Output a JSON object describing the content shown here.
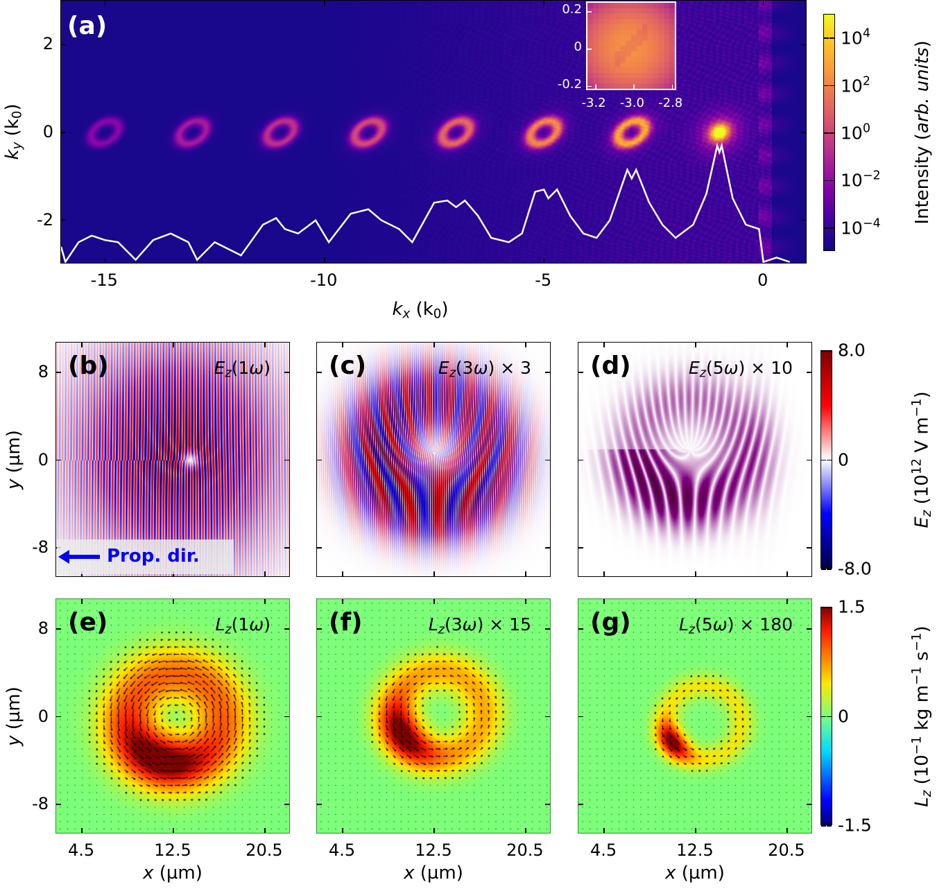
{
  "chart_data": [
    {
      "panel": "a",
      "type": "heatmap",
      "label": "(a)",
      "colormap": "plasma",
      "xlabel": [
        {
          "t": "k",
          "i": true
        },
        {
          "t": "x",
          "i": true,
          "sub": true
        },
        {
          "t": " (k"
        },
        {
          "t": "0",
          "sub": true
        },
        {
          "t": ")"
        }
      ],
      "ylabel": [
        {
          "t": "k",
          "i": true
        },
        {
          "t": "y",
          "i": true,
          "sub": true
        },
        {
          "t": " (k"
        },
        {
          "t": "0",
          "sub": true
        },
        {
          "t": ")"
        }
      ],
      "xlim": [
        -16,
        1
      ],
      "ylim": [
        -3,
        3
      ],
      "xticks": [
        {
          "v": -15,
          "label": "-15"
        },
        {
          "v": -10,
          "label": "-10"
        },
        {
          "v": -5,
          "label": "-5"
        },
        {
          "v": 0,
          "label": "0"
        }
      ],
      "yticks": [
        {
          "v": 2,
          "label": "2"
        },
        {
          "v": 0,
          "label": "0"
        },
        {
          "v": -2,
          "label": "-2"
        }
      ],
      "spot_centers_kx": [
        -15,
        -13,
        -11,
        -9,
        -7,
        -5,
        -3,
        -1
      ],
      "profile": {
        "color": "#ffffff",
        "points": [
          [
            -16,
            -2.6
          ],
          [
            -15.9,
            -2.95
          ],
          [
            -15.6,
            -2.5
          ],
          [
            -15.3,
            -2.35
          ],
          [
            -15,
            -2.45
          ],
          [
            -14.7,
            -2.5
          ],
          [
            -14.3,
            -2.9
          ],
          [
            -13.9,
            -2.45
          ],
          [
            -13.5,
            -2.3
          ],
          [
            -13.1,
            -2.5
          ],
          [
            -12.9,
            -2.9
          ],
          [
            -12.5,
            -2.5
          ],
          [
            -11.9,
            -2.8
          ],
          [
            -11.4,
            -2.1
          ],
          [
            -11.1,
            -1.95
          ],
          [
            -10.9,
            -2.2
          ],
          [
            -10.6,
            -2.3
          ],
          [
            -10.2,
            -2.0
          ],
          [
            -9.9,
            -2.5
          ],
          [
            -9.4,
            -1.85
          ],
          [
            -9.0,
            -1.75
          ],
          [
            -8.7,
            -2.0
          ],
          [
            -8.3,
            -2.2
          ],
          [
            -8.0,
            -2.5
          ],
          [
            -7.5,
            -1.6
          ],
          [
            -7.2,
            -1.55
          ],
          [
            -7.0,
            -1.7
          ],
          [
            -6.8,
            -1.55
          ],
          [
            -6.5,
            -1.9
          ],
          [
            -6.2,
            -2.4
          ],
          [
            -5.8,
            -2.5
          ],
          [
            -5.5,
            -2.3
          ],
          [
            -5.2,
            -1.35
          ],
          [
            -5.0,
            -1.3
          ],
          [
            -4.9,
            -1.5
          ],
          [
            -4.7,
            -1.3
          ],
          [
            -4.4,
            -1.9
          ],
          [
            -4.1,
            -2.3
          ],
          [
            -3.8,
            -2.4
          ],
          [
            -3.5,
            -2.0
          ],
          [
            -3.1,
            -0.85
          ],
          [
            -3.0,
            -1.05
          ],
          [
            -2.9,
            -0.85
          ],
          [
            -2.6,
            -1.6
          ],
          [
            -2.3,
            -2.1
          ],
          [
            -2.0,
            -2.4
          ],
          [
            -1.6,
            -2.1
          ],
          [
            -1.3,
            -1.4
          ],
          [
            -1.05,
            -0.3
          ],
          [
            -1.0,
            -0.45
          ],
          [
            -0.95,
            -0.3
          ],
          [
            -0.7,
            -1.5
          ],
          [
            -0.4,
            -2.1
          ],
          [
            -0.1,
            -2.2
          ],
          [
            0,
            -2.95
          ],
          [
            0.3,
            -2.85
          ],
          [
            0.6,
            -2.95
          ]
        ]
      },
      "inset": {
        "xlim": [
          -3.24,
          -2.77
        ],
        "ylim": [
          -0.23,
          0.245
        ],
        "xticks": [
          {
            "v": -3.2,
            "label": "-3.2"
          },
          {
            "v": -3.0,
            "label": "-3.0"
          },
          {
            "v": -2.8,
            "label": "-2.8"
          }
        ],
        "yticks": [
          {
            "v": 0.2,
            "label": "0.2"
          },
          {
            "v": 0,
            "label": "0"
          },
          {
            "v": -0.2,
            "label": "-0.2"
          }
        ]
      },
      "colorbar": {
        "scale": "log",
        "range": [
          1e-05,
          100000
        ],
        "label": [
          {
            "t": "Intensity ("
          },
          {
            "t": "arb. units",
            "i": true
          },
          {
            "t": ")"
          }
        ],
        "ticks": [
          {
            "v": 4,
            "base": "10",
            "exp": "4"
          },
          {
            "v": 2,
            "base": "10",
            "exp": "2"
          },
          {
            "v": 0,
            "base": "10",
            "exp": "0"
          },
          {
            "v": -2,
            "base": "10",
            "exp": "−2"
          },
          {
            "v": -4,
            "base": "10",
            "exp": "−4"
          }
        ]
      }
    },
    {
      "panel": "b",
      "type": "heatmap",
      "label": "(b)",
      "colormap": "seismic",
      "title": [
        {
          "t": "E",
          "i": true
        },
        {
          "t": "z",
          "i": true,
          "sub": true
        },
        {
          "t": "(1"
        },
        {
          "t": "ω",
          "i": true
        },
        {
          "t": ")"
        }
      ],
      "xlim": [
        2.25,
        22.75
      ],
      "ylim": [
        -10.7,
        10.7
      ],
      "ylabel": [
        {
          "t": "y",
          "i": true
        },
        {
          "t": " (µm)"
        }
      ],
      "yticks": [
        {
          "v": 8,
          "label": "8"
        },
        {
          "v": 0,
          "label": "0"
        },
        {
          "v": -8,
          "label": "-8"
        }
      ],
      "xticks": [
        {
          "v": 4.5,
          "label": ""
        },
        {
          "v": 12.5,
          "label": ""
        },
        {
          "v": 20.5,
          "label": ""
        }
      ],
      "annotation": {
        "text": "Prop. dir.",
        "color": "#0000ff",
        "arrow": "left"
      }
    },
    {
      "panel": "c",
      "type": "heatmap",
      "label": "(c)",
      "colormap": "seismic",
      "title": [
        {
          "t": "E",
          "i": true
        },
        {
          "t": "z",
          "i": true,
          "sub": true
        },
        {
          "t": "(3"
        },
        {
          "t": "ω",
          "i": true
        },
        {
          "t": ") × 3"
        }
      ],
      "xlim": [
        2.25,
        22.75
      ],
      "ylim": [
        -10.7,
        10.7
      ],
      "yticks": [
        {
          "v": 8,
          "label": ""
        },
        {
          "v": 0,
          "label": ""
        },
        {
          "v": -8,
          "label": ""
        }
      ],
      "xticks": [
        {
          "v": 4.5,
          "label": ""
        },
        {
          "v": 12.5,
          "label": ""
        },
        {
          "v": 20.5,
          "label": ""
        }
      ]
    },
    {
      "panel": "d",
      "type": "heatmap",
      "label": "(d)",
      "colormap": "seismic",
      "title": [
        {
          "t": "E",
          "i": true
        },
        {
          "t": "z",
          "i": true,
          "sub": true
        },
        {
          "t": "(5"
        },
        {
          "t": "ω",
          "i": true
        },
        {
          "t": ") × 10"
        }
      ],
      "xlim": [
        2.25,
        22.75
      ],
      "ylim": [
        -10.7,
        10.7
      ],
      "yticks": [
        {
          "v": 8,
          "label": ""
        },
        {
          "v": 0,
          "label": ""
        },
        {
          "v": -8,
          "label": ""
        }
      ],
      "xticks": [
        {
          "v": 4.5,
          "label": ""
        },
        {
          "v": 12.5,
          "label": ""
        },
        {
          "v": 20.5,
          "label": ""
        }
      ],
      "colorbar": {
        "range": [
          -8.0,
          8.0
        ],
        "label": [
          {
            "t": "E",
            "i": true
          },
          {
            "t": "z",
            "i": true,
            "sub": true
          },
          {
            "t": " (10"
          },
          {
            "t": "12",
            "sup": true
          },
          {
            "t": " V m"
          },
          {
            "t": "−1",
            "sup": true
          },
          {
            "t": ")"
          }
        ],
        "ticks": [
          {
            "v": 8,
            "label": "8.0"
          },
          {
            "v": 0,
            "label": "0"
          },
          {
            "v": -8,
            "label": "-8.0"
          }
        ]
      }
    },
    {
      "panel": "e",
      "type": "heatmap",
      "label": "(e)",
      "colormap": "jet",
      "title": [
        {
          "t": "L",
          "i": true
        },
        {
          "t": "z",
          "i": true,
          "sub": true
        },
        {
          "t": "(1"
        },
        {
          "t": "ω",
          "i": true
        },
        {
          "t": ")"
        }
      ],
      "xlim": [
        2.25,
        22.75
      ],
      "ylim": [
        -10.7,
        10.7
      ],
      "ylabel": [
        {
          "t": "y",
          "i": true
        },
        {
          "t": " (µm)"
        }
      ],
      "xlabel": [
        {
          "t": "x",
          "i": true
        },
        {
          "t": " (µm)"
        }
      ],
      "yticks": [
        {
          "v": 8,
          "label": "8"
        },
        {
          "v": 0,
          "label": "0"
        },
        {
          "v": -8,
          "label": "-8"
        }
      ],
      "xticks": [
        {
          "v": 4.5,
          "label": "4.5"
        },
        {
          "v": 12.5,
          "label": "12.5"
        },
        {
          "v": 20.5,
          "label": "20.5"
        }
      ]
    },
    {
      "panel": "f",
      "type": "heatmap",
      "label": "(f)",
      "colormap": "jet",
      "title": [
        {
          "t": "L",
          "i": true
        },
        {
          "t": "z",
          "i": true,
          "sub": true
        },
        {
          "t": "(3"
        },
        {
          "t": "ω",
          "i": true
        },
        {
          "t": ") × 15"
        }
      ],
      "xlim": [
        2.25,
        22.75
      ],
      "ylim": [
        -10.7,
        10.7
      ],
      "xlabel": [
        {
          "t": "x",
          "i": true
        },
        {
          "t": " (µm)"
        }
      ],
      "yticks": [
        {
          "v": 8,
          "label": ""
        },
        {
          "v": 0,
          "label": ""
        },
        {
          "v": -8,
          "label": ""
        }
      ],
      "xticks": [
        {
          "v": 4.5,
          "label": "4.5"
        },
        {
          "v": 12.5,
          "label": "12.5"
        },
        {
          "v": 20.5,
          "label": "20.5"
        }
      ]
    },
    {
      "panel": "g",
      "type": "heatmap",
      "label": "(g)",
      "colormap": "jet",
      "title": [
        {
          "t": "L",
          "i": true
        },
        {
          "t": "z",
          "i": true,
          "sub": true
        },
        {
          "t": "(5"
        },
        {
          "t": "ω",
          "i": true
        },
        {
          "t": ") × 180"
        }
      ],
      "xlim": [
        2.25,
        22.75
      ],
      "ylim": [
        -10.7,
        10.7
      ],
      "xlabel": [
        {
          "t": "x",
          "i": true
        },
        {
          "t": " (µm)"
        }
      ],
      "yticks": [
        {
          "v": 8,
          "label": ""
        },
        {
          "v": 0,
          "label": ""
        },
        {
          "v": -8,
          "label": ""
        }
      ],
      "xticks": [
        {
          "v": 4.5,
          "label": "4.5"
        },
        {
          "v": 12.5,
          "label": "12.5"
        },
        {
          "v": 20.5,
          "label": "20.5"
        }
      ],
      "colorbar": {
        "range": [
          -1.5,
          1.5
        ],
        "label": [
          {
            "t": "L",
            "i": true
          },
          {
            "t": "z",
            "i": true,
            "sub": true
          },
          {
            "t": " (10"
          },
          {
            "t": "−1",
            "sup": true
          },
          {
            "t": " kg m"
          },
          {
            "t": "−1",
            "sup": true
          },
          {
            "t": " s"
          },
          {
            "t": "−1",
            "sup": true
          },
          {
            "t": ")"
          }
        ],
        "ticks": [
          {
            "v": 1.5,
            "label": "1.5"
          },
          {
            "v": 0,
            "label": "0"
          },
          {
            "v": -1.5,
            "label": "-1.5"
          }
        ]
      }
    }
  ]
}
